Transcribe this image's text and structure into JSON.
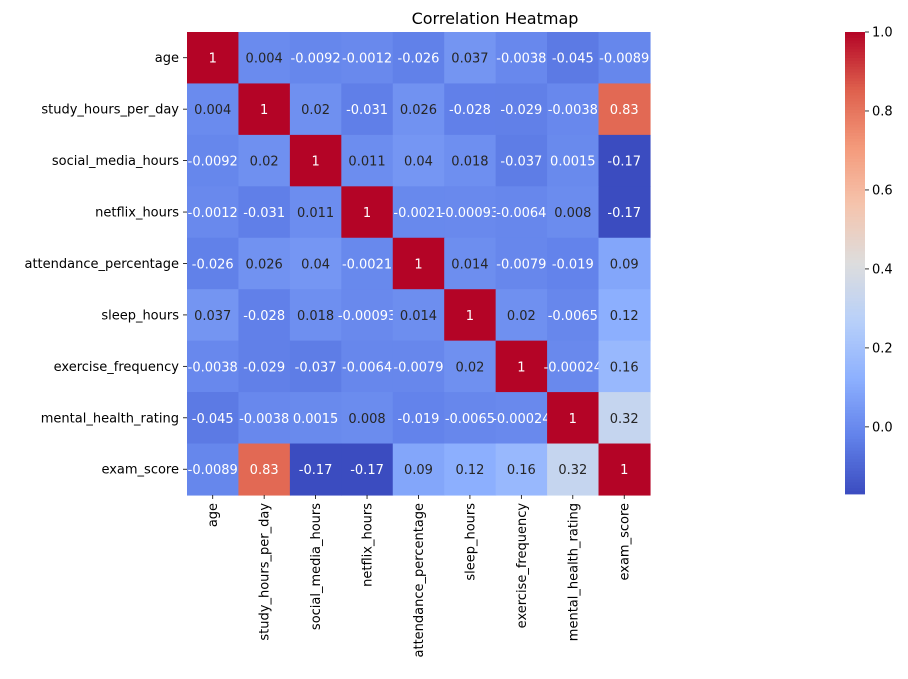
{
  "chart_data": {
    "type": "heatmap",
    "title": "Correlation Heatmap",
    "labels": [
      "age",
      "study_hours_per_day",
      "social_media_hours",
      "netflix_hours",
      "attendance_percentage",
      "sleep_hours",
      "exercise_frequency",
      "mental_health_rating",
      "exam_score"
    ],
    "matrix": [
      [
        "1",
        "0.004",
        "-0.0092",
        "-0.0012",
        "-0.026",
        "0.037",
        "-0.0038",
        "-0.045",
        "-0.0089"
      ],
      [
        "0.004",
        "1",
        "0.02",
        "-0.031",
        "0.026",
        "-0.028",
        "-0.029",
        "-0.0038",
        "0.83"
      ],
      [
        "-0.0092",
        "0.02",
        "1",
        "0.011",
        "0.04",
        "0.018",
        "-0.037",
        "0.0015",
        "-0.17"
      ],
      [
        "-0.0012",
        "-0.031",
        "0.011",
        "1",
        "-0.0021",
        "-0.00093",
        "-0.0064",
        "0.008",
        "-0.17"
      ],
      [
        "-0.026",
        "0.026",
        "0.04",
        "-0.0021",
        "1",
        "0.014",
        "-0.0079",
        "-0.019",
        "0.09"
      ],
      [
        "0.037",
        "-0.028",
        "0.018",
        "-0.00093",
        "0.014",
        "1",
        "0.02",
        "-0.0065",
        "0.12"
      ],
      [
        "-0.0038",
        "-0.029",
        "-0.037",
        "-0.0064",
        "-0.0079",
        "0.02",
        "1",
        "-0.00024",
        "0.16"
      ],
      [
        "-0.045",
        "-0.0038",
        "0.0015",
        "0.008",
        "-0.019",
        "-0.0065",
        "-0.00024",
        "1",
        "0.32"
      ],
      [
        "-0.0089",
        "0.83",
        "-0.17",
        "-0.17",
        "0.09",
        "0.12",
        "0.16",
        "0.32",
        "1"
      ]
    ],
    "colormap": "coolwarm",
    "vmin": -0.17,
    "vmax": 1.0,
    "colorbar_ticks": [
      "0.0",
      "0.2",
      "0.4",
      "0.6",
      "0.8",
      "1.0"
    ],
    "colorbar_tick_values": [
      0.0,
      0.2,
      0.4,
      0.6,
      0.8,
      1.0
    ],
    "legend": "colorbar-right"
  }
}
